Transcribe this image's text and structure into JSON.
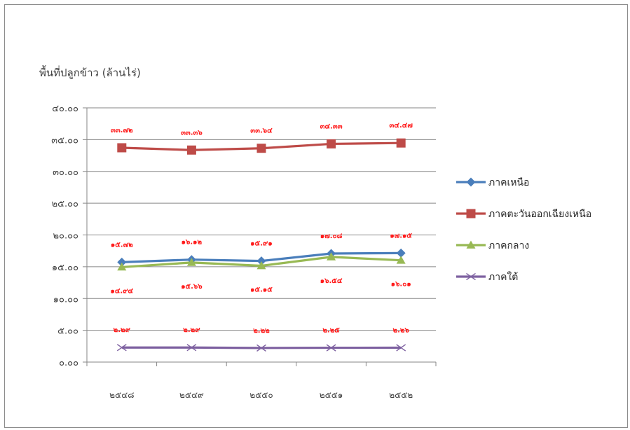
{
  "chart_data": {
    "type": "line",
    "ylabel": "พื้นที่ปลูกข้าว (ล้านไร่)",
    "ylim": [
      0,
      40
    ],
    "y_ticks": [
      0,
      5,
      10,
      15,
      20,
      25,
      30,
      35,
      40
    ],
    "y_tick_labels": [
      "๐.๐๐",
      "๕.๐๐",
      "๑๐.๐๐",
      "๑๕.๐๐",
      "๒๐.๐๐",
      "๒๕.๐๐",
      "๓๐.๐๐",
      "๓๕.๐๐",
      "๔๐.๐๐"
    ],
    "grid": true,
    "legend_position": "right",
    "categories": [
      "๒๕๔๘",
      "๒๕๔๙",
      "๒๕๕๐",
      "๒๕๕๑",
      "๒๕๕๒"
    ],
    "series": [
      {
        "name": "ภาคเหนือ",
        "color": "#4a7ebb",
        "marker": "diamond",
        "values": [
          15.72,
          16.12,
          15.91,
          17.08,
          17.15
        ],
        "value_labels": [
          "๑๕.๗๒",
          "๑๖.๑๒",
          "๑๕.๙๑",
          "๑๗.๐๘",
          "๑๗.๑๕"
        ],
        "label_position": "above"
      },
      {
        "name": "ภาคตะวันออกเฉียงเหนือ",
        "color": "#be4b48",
        "marker": "square",
        "values": [
          33.72,
          33.36,
          33.64,
          34.33,
          34.47
        ],
        "value_labels": [
          "๓๓.๗๒",
          "๓๓.๓๖",
          "๓๓.๖๔",
          "๓๔.๓๓",
          "๓๔.๔๗"
        ],
        "label_position": "above"
      },
      {
        "name": "ภาคกลาง",
        "color": "#98b954",
        "marker": "triangle",
        "values": [
          14.94,
          15.66,
          15.15,
          16.54,
          16.01
        ],
        "value_labels": [
          "๑๔.๙๔",
          "๑๕.๖๖",
          "๑๕.๑๕",
          "๑๖.๕๔",
          "๑๖.๐๑"
        ],
        "label_position": "below"
      },
      {
        "name": "ภาคใต้",
        "color": "#7d60a0",
        "marker": "x",
        "values": [
          2.29,
          2.29,
          2.22,
          2.25,
          2.26
        ],
        "value_labels": [
          "๒.๒๙",
          "๒.๒๙",
          "๒.๒๒",
          "๒.๒๕",
          "๒.๒๖"
        ],
        "label_position": "above"
      }
    ]
  }
}
